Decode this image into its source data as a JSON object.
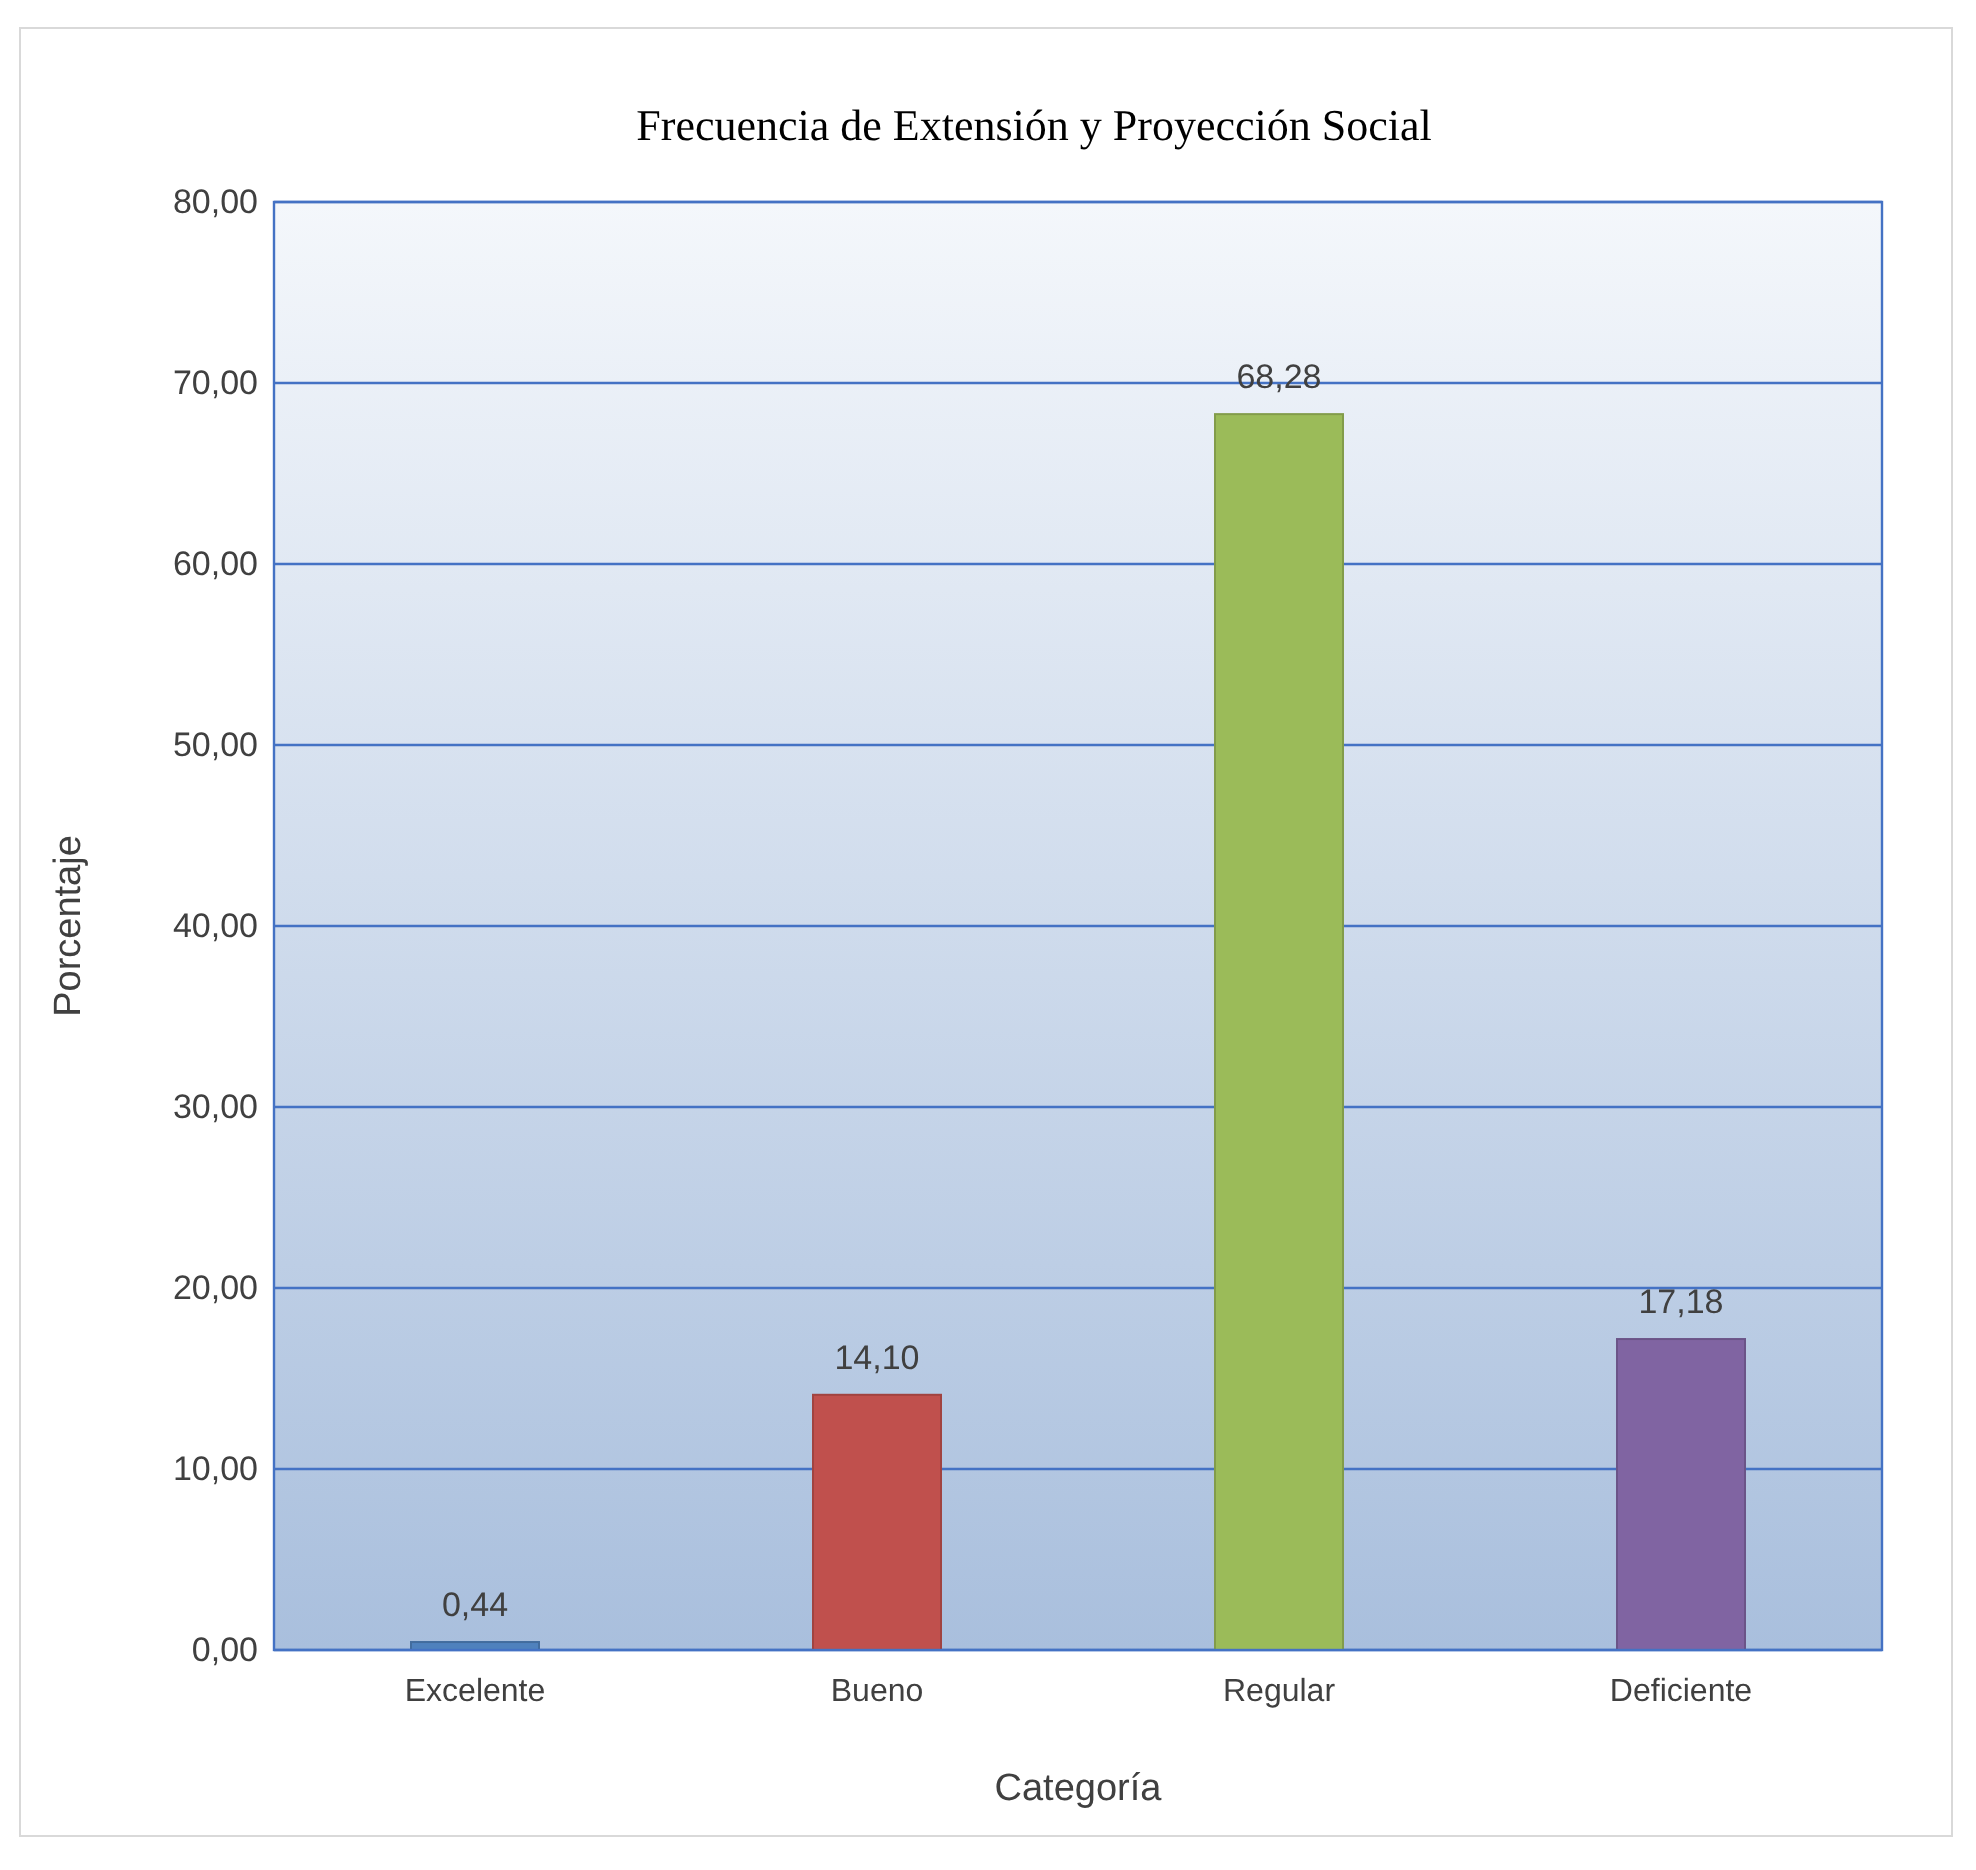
{
  "chart_data": {
    "type": "bar",
    "title": "Frecuencia  de Extensión y Proyección Social",
    "xlabel": "Categoría",
    "ylabel": "Porcentaje",
    "categories": [
      "Excelente",
      "Bueno",
      "Regular",
      "Deficiente"
    ],
    "values": [
      0.44,
      14.1,
      68.28,
      17.18
    ],
    "colors": [
      "#4f81bd",
      "#c0504d",
      "#9bbb59",
      "#8064a2"
    ],
    "value_labels": [
      "0,44",
      "14,10",
      "68,28",
      "17,18"
    ],
    "ylim": [
      0,
      80
    ],
    "yticks": [
      {
        "value": 0,
        "label": "0,00"
      },
      {
        "value": 10,
        "label": "10,00"
      },
      {
        "value": 20,
        "label": "20,00"
      },
      {
        "value": 30,
        "label": "30,00"
      },
      {
        "value": 40,
        "label": "40,00"
      },
      {
        "value": 50,
        "label": "50,00"
      },
      {
        "value": 60,
        "label": "60,00"
      },
      {
        "value": 70,
        "label": "70,00"
      },
      {
        "value": 80,
        "label": "80,00"
      }
    ],
    "grid": "y"
  }
}
